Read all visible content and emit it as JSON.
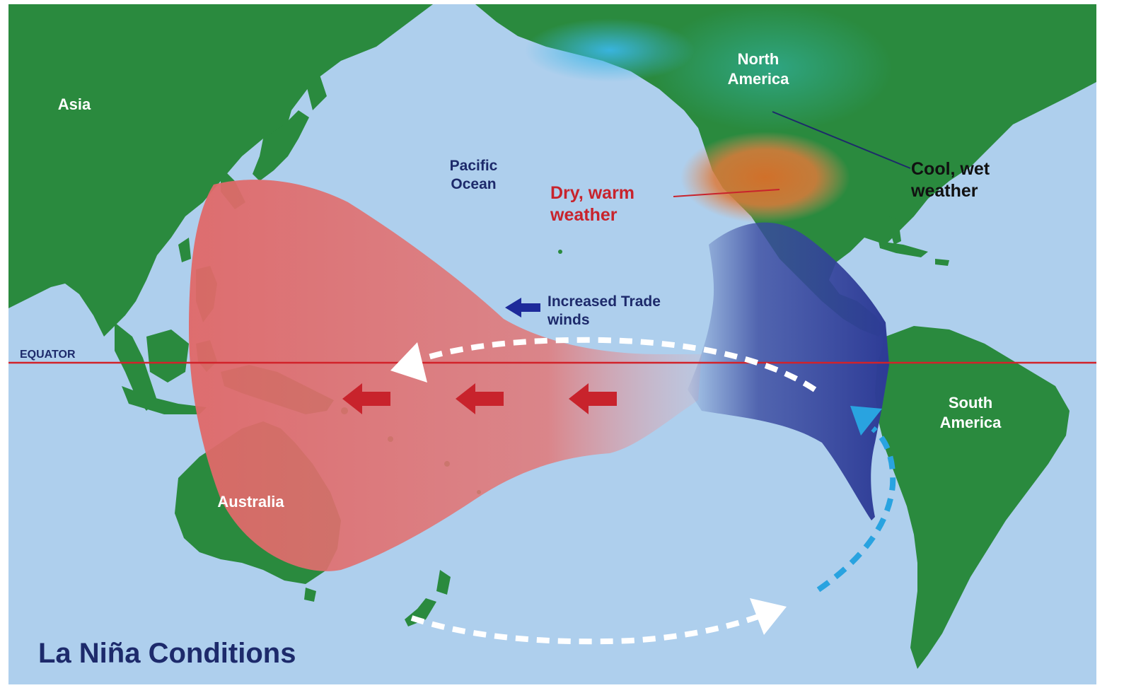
{
  "title": "La Niña Conditions",
  "labels": {
    "asia": "Asia",
    "north_america": "North\nAmerica",
    "south_america": "South\nAmerica",
    "australia": "Australia",
    "pacific_ocean": "Pacific\nOcean",
    "equator": "EQUATOR",
    "dry_warm": "Dry, warm\nweather",
    "cool_wet": "Cool, wet\nweather",
    "trade_winds": "Increased Trade\nwinds"
  },
  "colors": {
    "ocean": "#aecfed",
    "land": "#2a8a3e",
    "warm_water": "#e06a6a",
    "cool_water": "#2e3d9a",
    "equator_line": "#d2222a",
    "title_text": "#1d2a6b",
    "warm_label": "#c8232c",
    "light_blue_arrow": "#29a3e0"
  },
  "icons": {
    "warm_current_arrows": "red-arrow-left",
    "trade_wind_arrow": "navy-arrow-left",
    "circulation_arrows": "white-dashed-arrow",
    "upwelling_arrow": "light-blue-dashed-arrow"
  }
}
